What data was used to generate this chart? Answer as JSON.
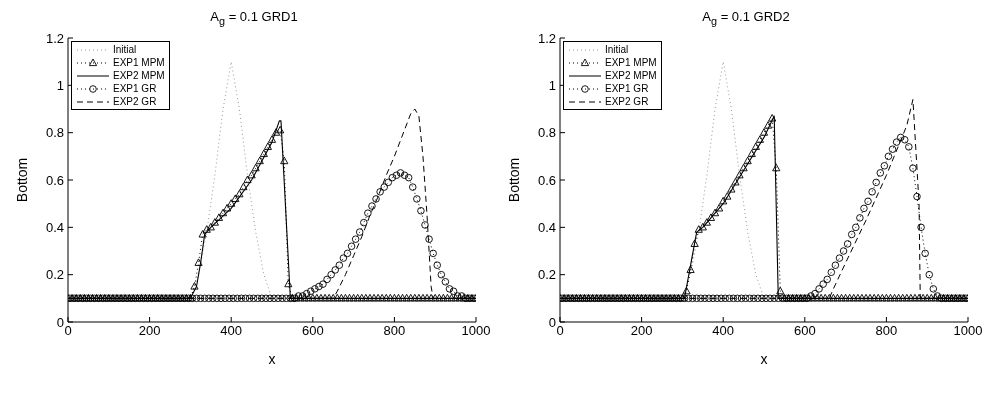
{
  "chart_data": [
    {
      "type": "line",
      "title": "A$_{g}$ = 0.1 GRD1",
      "xlabel": "x",
      "ylabel": "Bottom",
      "xlim": [
        0,
        1000
      ],
      "ylim": [
        0,
        1.2
      ],
      "xticks": [
        0,
        200,
        400,
        600,
        800,
        1000
      ],
      "yticks": [
        0,
        0.2,
        0.4,
        0.6,
        0.8,
        1,
        1.2
      ],
      "grid": false,
      "legend": "top left",
      "series": [
        {
          "name": "Initial",
          "color": "#999999",
          "marker": "none",
          "line_style": "dotted",
          "x": [
            0,
            300,
            320,
            340,
            360,
            380,
            400,
            420,
            440,
            460,
            480,
            500,
            1000
          ],
          "values": [
            0.1,
            0.1,
            0.2,
            0.38,
            0.62,
            0.9,
            1.1,
            0.9,
            0.62,
            0.38,
            0.2,
            0.1,
            0.1
          ]
        },
        {
          "name": "EXP1 MPM",
          "color": "#000000",
          "marker": "triangle",
          "line_style": "dotted",
          "x": [
            0,
            10,
            20,
            30,
            40,
            50,
            60,
            70,
            80,
            90,
            100,
            110,
            120,
            130,
            140,
            150,
            160,
            170,
            180,
            190,
            200,
            210,
            220,
            230,
            240,
            250,
            260,
            270,
            280,
            290,
            300,
            310,
            320,
            330,
            340,
            350,
            360,
            370,
            380,
            390,
            400,
            410,
            420,
            430,
            440,
            450,
            460,
            470,
            480,
            490,
            500,
            510,
            520,
            530,
            540,
            550,
            560,
            570,
            580,
            590,
            600,
            610,
            620,
            630,
            640,
            650,
            660,
            670,
            680,
            690,
            700,
            710,
            720,
            730,
            740,
            750,
            760,
            770,
            780,
            790,
            800,
            810,
            820,
            830,
            840,
            850,
            860,
            870,
            880,
            890,
            900,
            910,
            920,
            930,
            940,
            950,
            960,
            970,
            980,
            990,
            1000
          ],
          "values": [
            0.1,
            0.1,
            0.1,
            0.1,
            0.1,
            0.1,
            0.1,
            0.1,
            0.1,
            0.1,
            0.1,
            0.1,
            0.1,
            0.1,
            0.1,
            0.1,
            0.1,
            0.1,
            0.1,
            0.1,
            0.1,
            0.1,
            0.1,
            0.1,
            0.1,
            0.1,
            0.1,
            0.1,
            0.1,
            0.1,
            0.1,
            0.15,
            0.25,
            0.37,
            0.39,
            0.4,
            0.42,
            0.44,
            0.46,
            0.48,
            0.5,
            0.52,
            0.54,
            0.57,
            0.6,
            0.62,
            0.65,
            0.68,
            0.71,
            0.74,
            0.77,
            0.8,
            0.81,
            0.68,
            0.16,
            0.1,
            0.1,
            0.1,
            0.1,
            0.1,
            0.1,
            0.1,
            0.1,
            0.1,
            0.1,
            0.1,
            0.1,
            0.1,
            0.1,
            0.1,
            0.1,
            0.1,
            0.1,
            0.1,
            0.1,
            0.1,
            0.1,
            0.1,
            0.1,
            0.1,
            0.1,
            0.1,
            0.1,
            0.1,
            0.1,
            0.1,
            0.1,
            0.1,
            0.1,
            0.1,
            0.1,
            0.1,
            0.1,
            0.1,
            0.1,
            0.1,
            0.1,
            0.1,
            0.1,
            0.1,
            0.1
          ]
        },
        {
          "name": "EXP2 MPM",
          "color": "#000000",
          "marker": "none",
          "line_style": "solid",
          "x": [
            0,
            300,
            315,
            325,
            335,
            350,
            400,
            450,
            500,
            518,
            522,
            545,
            1000
          ],
          "values": [
            0.1,
            0.1,
            0.15,
            0.25,
            0.37,
            0.4,
            0.48,
            0.6,
            0.76,
            0.85,
            0.85,
            0.1,
            0.1
          ]
        },
        {
          "name": "EXP1 GR",
          "color": "#000000",
          "marker": "circle",
          "line_style": "dotted",
          "x": [
            5,
            15,
            25,
            35,
            45,
            55,
            65,
            75,
            85,
            95,
            105,
            115,
            125,
            135,
            145,
            155,
            165,
            175,
            185,
            195,
            205,
            215,
            225,
            235,
            245,
            255,
            265,
            275,
            285,
            295,
            305,
            315,
            325,
            335,
            345,
            355,
            365,
            375,
            385,
            395,
            405,
            415,
            425,
            435,
            445,
            455,
            465,
            475,
            485,
            495,
            505,
            515,
            525,
            535,
            545,
            555,
            565,
            575,
            585,
            595,
            605,
            615,
            625,
            635,
            645,
            655,
            665,
            675,
            685,
            695,
            705,
            715,
            725,
            735,
            745,
            755,
            765,
            775,
            785,
            795,
            805,
            815,
            825,
            835,
            845,
            855,
            865,
            875,
            885,
            895,
            905,
            915,
            925,
            935,
            945,
            955,
            965,
            975,
            985,
            995
          ],
          "values": [
            0.1,
            0.1,
            0.1,
            0.1,
            0.1,
            0.1,
            0.1,
            0.1,
            0.1,
            0.1,
            0.1,
            0.1,
            0.1,
            0.1,
            0.1,
            0.1,
            0.1,
            0.1,
            0.1,
            0.1,
            0.1,
            0.1,
            0.1,
            0.1,
            0.1,
            0.1,
            0.1,
            0.1,
            0.1,
            0.1,
            0.1,
            0.1,
            0.1,
            0.1,
            0.1,
            0.1,
            0.1,
            0.1,
            0.1,
            0.1,
            0.1,
            0.1,
            0.1,
            0.1,
            0.1,
            0.1,
            0.1,
            0.1,
            0.1,
            0.1,
            0.1,
            0.1,
            0.1,
            0.1,
            0.1,
            0.1,
            0.11,
            0.11,
            0.12,
            0.13,
            0.14,
            0.15,
            0.16,
            0.18,
            0.2,
            0.22,
            0.24,
            0.27,
            0.29,
            0.32,
            0.35,
            0.38,
            0.42,
            0.46,
            0.49,
            0.52,
            0.55,
            0.57,
            0.59,
            0.61,
            0.62,
            0.63,
            0.62,
            0.61,
            0.57,
            0.52,
            0.47,
            0.41,
            0.35,
            0.29,
            0.24,
            0.2,
            0.17,
            0.14,
            0.13,
            0.11,
            0.11,
            0.1,
            0.1,
            0.1
          ]
        },
        {
          "name": "EXP2 GR",
          "color": "#000000",
          "marker": "none",
          "line_style": "dashed",
          "x": [
            0,
            650,
            660,
            680,
            700,
            720,
            740,
            760,
            780,
            800,
            820,
            840,
            850,
            860,
            870,
            880,
            890,
            895,
            1000
          ],
          "values": [
            0.1,
            0.1,
            0.13,
            0.2,
            0.28,
            0.36,
            0.45,
            0.53,
            0.62,
            0.7,
            0.79,
            0.88,
            0.9,
            0.87,
            0.7,
            0.45,
            0.15,
            0.1,
            0.1
          ]
        }
      ]
    },
    {
      "type": "line",
      "title": "A$_{g}$ = 0.1 GRD2",
      "xlabel": "x",
      "ylabel": "Bottom",
      "xlim": [
        0,
        1000
      ],
      "ylim": [
        0,
        1.2
      ],
      "xticks": [
        0,
        200,
        400,
        600,
        800,
        1000
      ],
      "yticks": [
        0,
        0.2,
        0.4,
        0.6,
        0.8,
        1,
        1.2
      ],
      "grid": false,
      "legend": "top left",
      "series": [
        {
          "name": "Initial",
          "color": "#999999",
          "marker": "none",
          "line_style": "dotted",
          "x": [
            0,
            300,
            320,
            340,
            360,
            380,
            400,
            420,
            440,
            460,
            480,
            500,
            1000
          ],
          "values": [
            0.1,
            0.1,
            0.2,
            0.38,
            0.62,
            0.9,
            1.1,
            0.9,
            0.62,
            0.38,
            0.2,
            0.1,
            0.1
          ]
        },
        {
          "name": "EXP1 MPM",
          "color": "#000000",
          "marker": "triangle",
          "line_style": "dotted",
          "x": [
            0,
            10,
            20,
            30,
            40,
            50,
            60,
            70,
            80,
            90,
            100,
            110,
            120,
            130,
            140,
            150,
            160,
            170,
            180,
            190,
            200,
            210,
            220,
            230,
            240,
            250,
            260,
            270,
            280,
            290,
            300,
            310,
            320,
            330,
            340,
            350,
            360,
            370,
            380,
            390,
            400,
            410,
            420,
            430,
            440,
            450,
            460,
            470,
            480,
            490,
            500,
            510,
            520,
            530,
            540,
            550,
            560,
            570,
            580,
            590,
            600,
            610,
            620,
            630,
            640,
            650,
            660,
            670,
            680,
            690,
            700,
            710,
            720,
            730,
            740,
            750,
            760,
            770,
            780,
            790,
            800,
            810,
            820,
            830,
            840,
            850,
            860,
            870,
            880,
            890,
            900,
            910,
            920,
            930,
            940,
            950,
            960,
            970,
            980,
            990,
            1000
          ],
          "values": [
            0.1,
            0.1,
            0.1,
            0.1,
            0.1,
            0.1,
            0.1,
            0.1,
            0.1,
            0.1,
            0.1,
            0.1,
            0.1,
            0.1,
            0.1,
            0.1,
            0.1,
            0.1,
            0.1,
            0.1,
            0.1,
            0.1,
            0.1,
            0.1,
            0.1,
            0.1,
            0.1,
            0.1,
            0.1,
            0.1,
            0.1,
            0.13,
            0.22,
            0.33,
            0.39,
            0.4,
            0.42,
            0.44,
            0.46,
            0.48,
            0.51,
            0.53,
            0.56,
            0.59,
            0.62,
            0.65,
            0.68,
            0.71,
            0.74,
            0.77,
            0.8,
            0.83,
            0.86,
            0.65,
            0.13,
            0.1,
            0.1,
            0.1,
            0.1,
            0.1,
            0.1,
            0.1,
            0.1,
            0.1,
            0.1,
            0.1,
            0.1,
            0.1,
            0.1,
            0.1,
            0.1,
            0.1,
            0.1,
            0.1,
            0.1,
            0.1,
            0.1,
            0.1,
            0.1,
            0.1,
            0.1,
            0.1,
            0.1,
            0.1,
            0.1,
            0.1,
            0.1,
            0.1,
            0.1,
            0.1,
            0.1,
            0.1,
            0.1,
            0.1,
            0.1,
            0.1,
            0.1,
            0.1,
            0.1,
            0.1,
            0.1
          ]
        },
        {
          "name": "EXP2 MPM",
          "color": "#000000",
          "marker": "none",
          "line_style": "solid",
          "x": [
            0,
            305,
            335,
            350,
            400,
            450,
            500,
            525,
            535,
            1000
          ],
          "values": [
            0.1,
            0.1,
            0.38,
            0.4,
            0.5,
            0.64,
            0.78,
            0.87,
            0.1,
            0.1
          ]
        },
        {
          "name": "EXP1 GR",
          "color": "#000000",
          "marker": "circle",
          "line_style": "dotted",
          "x": [
            5,
            15,
            25,
            35,
            45,
            55,
            65,
            75,
            85,
            95,
            105,
            115,
            125,
            135,
            145,
            155,
            165,
            175,
            185,
            195,
            205,
            215,
            225,
            235,
            245,
            255,
            265,
            275,
            285,
            295,
            305,
            315,
            325,
            335,
            345,
            355,
            365,
            375,
            385,
            395,
            405,
            415,
            425,
            435,
            445,
            455,
            465,
            475,
            485,
            495,
            505,
            515,
            525,
            535,
            545,
            555,
            565,
            575,
            585,
            595,
            605,
            615,
            625,
            635,
            645,
            655,
            665,
            675,
            685,
            695,
            705,
            715,
            725,
            735,
            745,
            755,
            765,
            775,
            785,
            795,
            805,
            815,
            825,
            835,
            845,
            855,
            865,
            875,
            885,
            895,
            905,
            915,
            925,
            935,
            945,
            955,
            965,
            975,
            985,
            995
          ],
          "values": [
            0.1,
            0.1,
            0.1,
            0.1,
            0.1,
            0.1,
            0.1,
            0.1,
            0.1,
            0.1,
            0.1,
            0.1,
            0.1,
            0.1,
            0.1,
            0.1,
            0.1,
            0.1,
            0.1,
            0.1,
            0.1,
            0.1,
            0.1,
            0.1,
            0.1,
            0.1,
            0.1,
            0.1,
            0.1,
            0.1,
            0.1,
            0.1,
            0.1,
            0.1,
            0.1,
            0.1,
            0.1,
            0.1,
            0.1,
            0.1,
            0.1,
            0.1,
            0.1,
            0.1,
            0.1,
            0.1,
            0.1,
            0.1,
            0.1,
            0.1,
            0.1,
            0.1,
            0.1,
            0.1,
            0.1,
            0.1,
            0.1,
            0.1,
            0.1,
            0.1,
            0.1,
            0.11,
            0.12,
            0.14,
            0.16,
            0.18,
            0.21,
            0.24,
            0.27,
            0.3,
            0.33,
            0.37,
            0.4,
            0.44,
            0.48,
            0.51,
            0.55,
            0.59,
            0.63,
            0.66,
            0.7,
            0.73,
            0.76,
            0.78,
            0.77,
            0.74,
            0.65,
            0.53,
            0.4,
            0.29,
            0.2,
            0.14,
            0.11,
            0.1,
            0.1,
            0.1,
            0.1,
            0.1,
            0.1,
            0.1
          ]
        },
        {
          "name": "EXP2 GR",
          "color": "#000000",
          "marker": "none",
          "line_style": "dashed",
          "x": [
            0,
            660,
            670,
            700,
            750,
            800,
            850,
            865,
            880,
            883,
            1000
          ],
          "values": [
            0.1,
            0.1,
            0.14,
            0.25,
            0.43,
            0.62,
            0.83,
            0.94,
            0.5,
            0.1,
            0.1
          ]
        }
      ]
    }
  ]
}
